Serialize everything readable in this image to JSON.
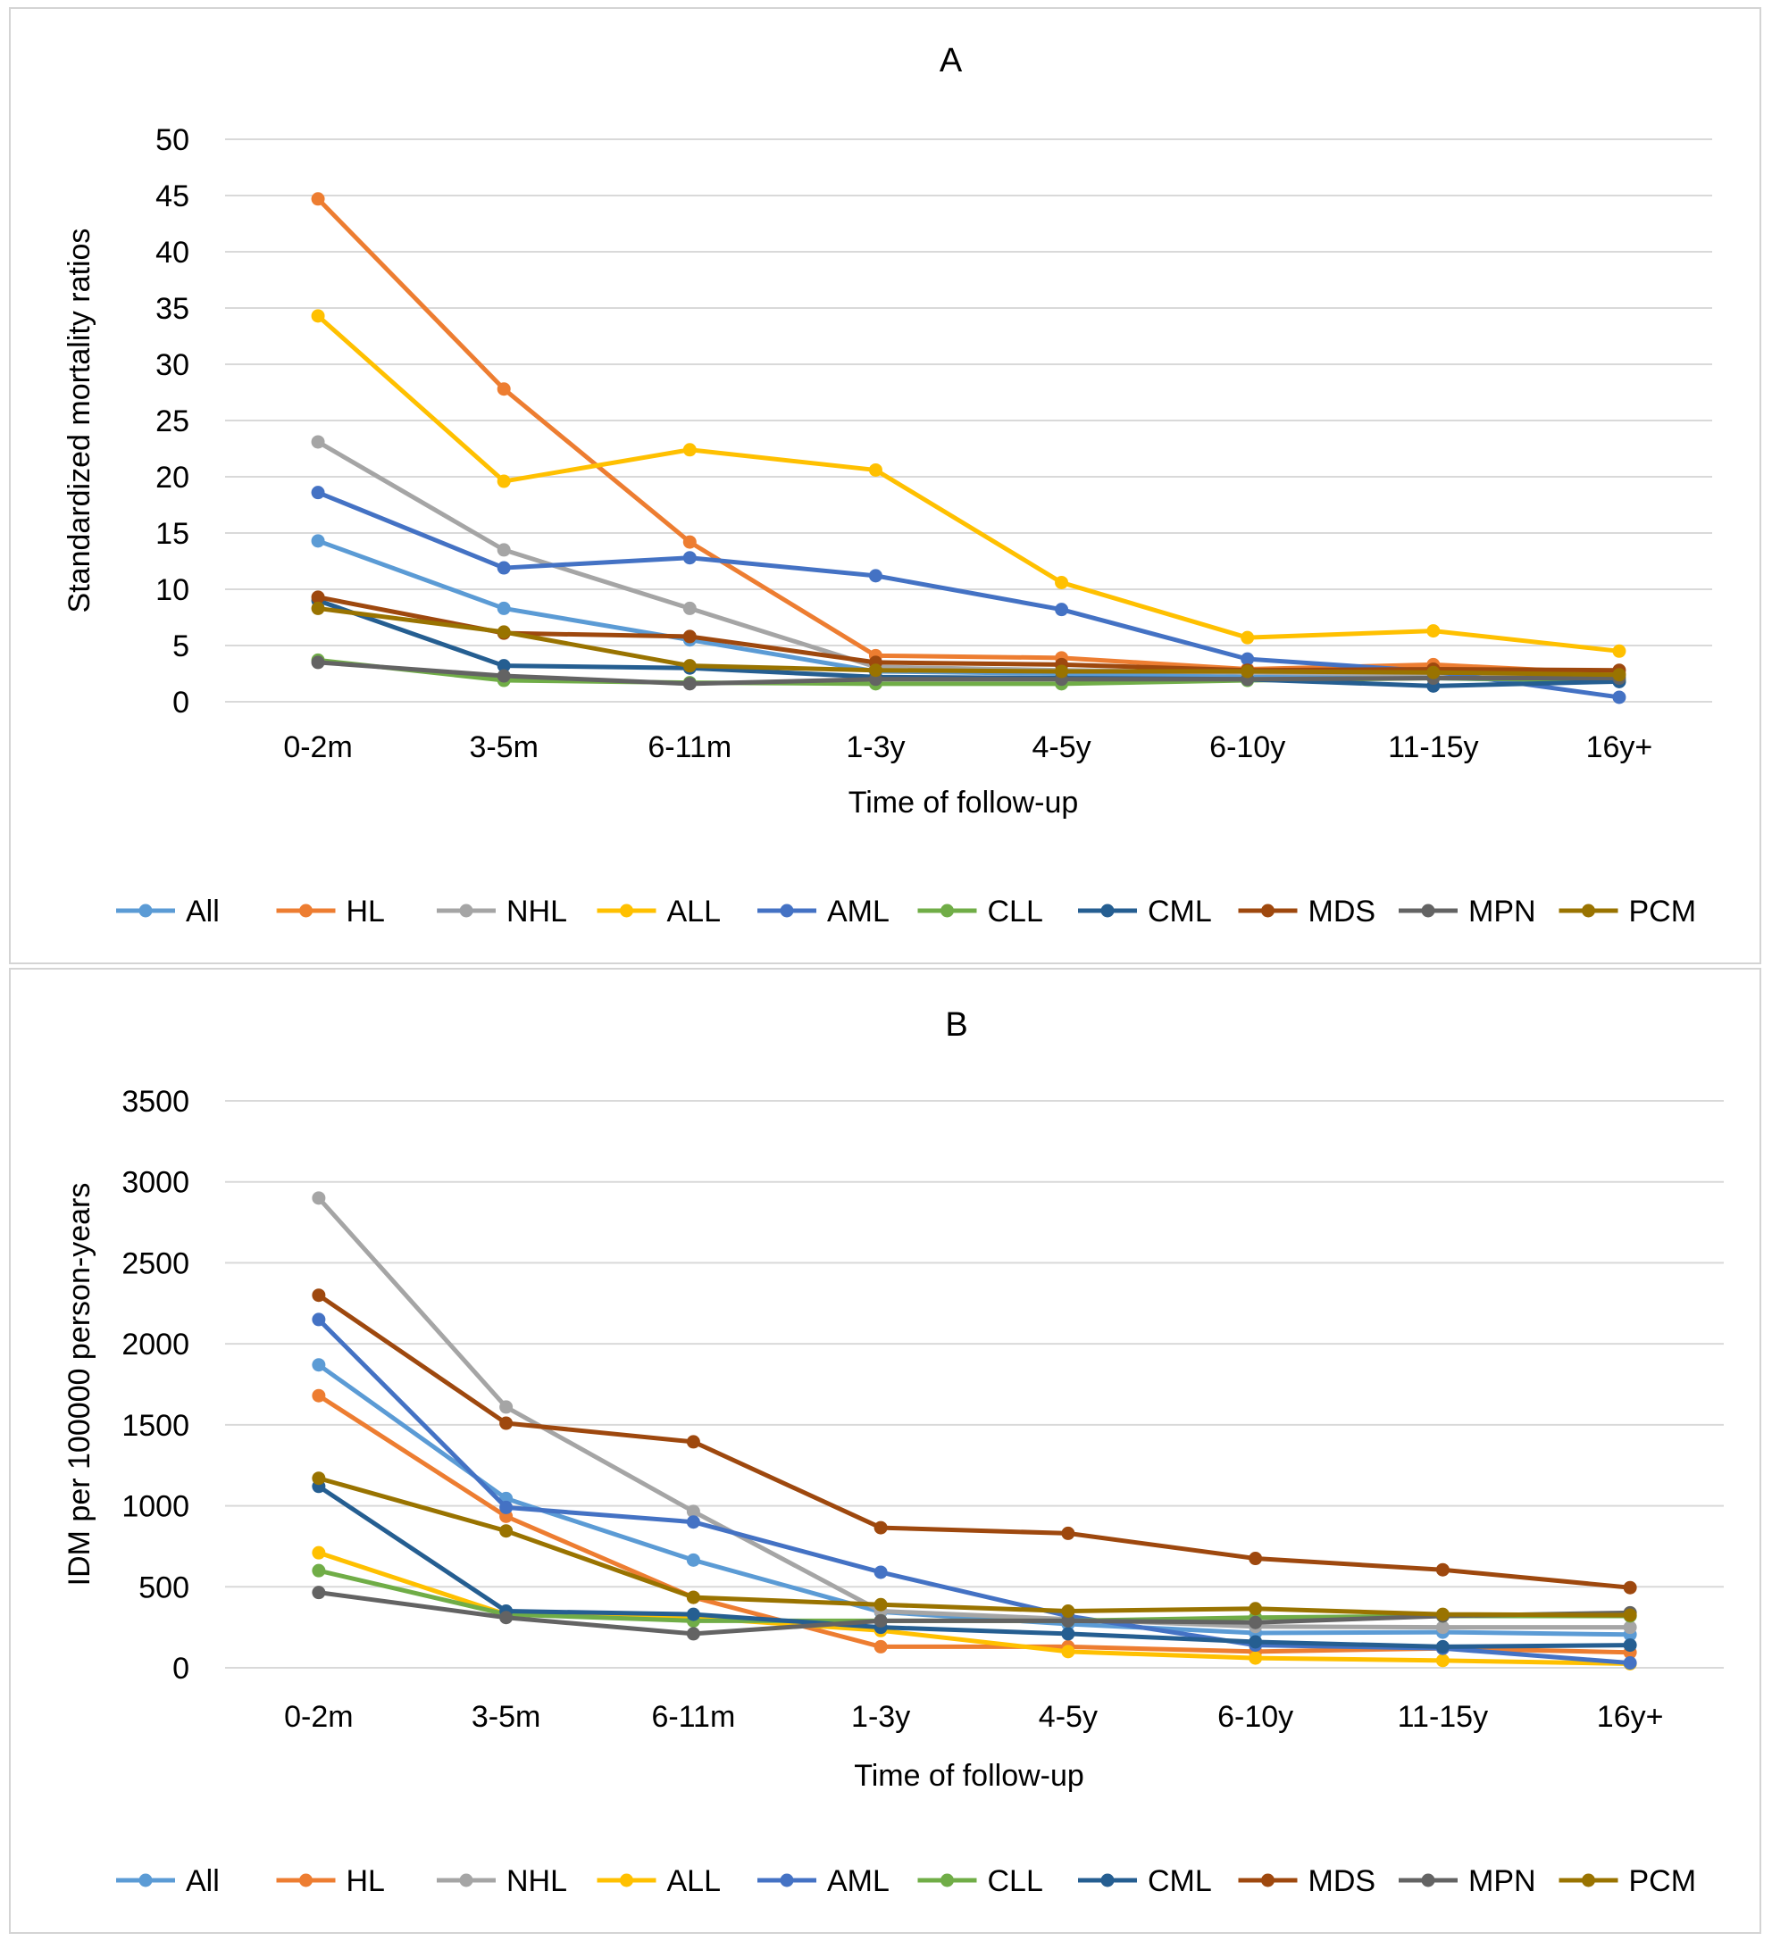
{
  "chart_data": [
    {
      "type": "line",
      "title": "A",
      "xlabel": "Time of follow-up",
      "ylabel": "Standardized mortality ratios",
      "ylim": [
        0,
        50
      ],
      "yticks": [
        0,
        5,
        10,
        15,
        20,
        25,
        30,
        35,
        40,
        45,
        50
      ],
      "grid": true,
      "legend_position": "bottom",
      "categories": [
        "0-2m",
        "3-5m",
        "6-11m",
        "1-3y",
        "4-5y",
        "6-10y",
        "11-15y",
        "16y+"
      ],
      "series": [
        {
          "name": "All",
          "color": "#5B9BD5",
          "values": [
            14.3,
            8.3,
            5.5,
            2.7,
            2.5,
            2.2,
            2.1,
            1.8
          ]
        },
        {
          "name": "HL",
          "color": "#ED7D31",
          "values": [
            44.7,
            27.8,
            14.2,
            4.1,
            3.9,
            2.9,
            3.3,
            2.5
          ]
        },
        {
          "name": "NHL",
          "color": "#A5A5A5",
          "values": [
            23.1,
            13.5,
            8.3,
            3.1,
            2.8,
            2.6,
            2.4,
            2.3
          ]
        },
        {
          "name": "ALL",
          "color": "#FFC000",
          "values": [
            34.3,
            19.6,
            22.4,
            20.6,
            10.6,
            5.7,
            6.3,
            4.5
          ]
        },
        {
          "name": "AML",
          "color": "#4472C4",
          "values": [
            18.6,
            11.9,
            12.8,
            11.2,
            8.2,
            3.8,
            2.7,
            0.4
          ]
        },
        {
          "name": "CLL",
          "color": "#70AD47",
          "values": [
            3.7,
            1.9,
            1.7,
            1.6,
            1.6,
            1.9,
            2.1,
            1.9
          ]
        },
        {
          "name": "CML",
          "color": "#255E91",
          "values": [
            9.0,
            3.2,
            3.0,
            2.2,
            2.1,
            2.0,
            1.4,
            1.8
          ]
        },
        {
          "name": "MDS",
          "color": "#9E480E",
          "values": [
            9.3,
            6.1,
            5.8,
            3.5,
            3.3,
            2.8,
            2.9,
            2.8
          ]
        },
        {
          "name": "MPN",
          "color": "#636363",
          "values": [
            3.5,
            2.3,
            1.6,
            2.0,
            2.0,
            2.0,
            2.1,
            2.1
          ]
        },
        {
          "name": "PCM",
          "color": "#997300",
          "values": [
            8.3,
            6.2,
            3.2,
            2.8,
            2.7,
            2.7,
            2.6,
            2.4
          ]
        }
      ]
    },
    {
      "type": "line",
      "title": "B",
      "xlabel": "Time of follow-up",
      "ylabel": "IDM per 100000 person-years",
      "ylim": [
        0,
        3500
      ],
      "yticks": [
        0,
        500,
        1000,
        1500,
        2000,
        2500,
        3000,
        3500
      ],
      "grid": true,
      "legend_position": "bottom",
      "categories": [
        "0-2m",
        "3-5m",
        "6-11m",
        "1-3y",
        "4-5y",
        "6-10y",
        "11-15y",
        "16y+"
      ],
      "series": [
        {
          "name": "All",
          "color": "#5B9BD5",
          "values": [
            1870,
            1045,
            665,
            345,
            270,
            215,
            220,
            205
          ]
        },
        {
          "name": "HL",
          "color": "#ED7D31",
          "values": [
            1680,
            935,
            435,
            130,
            130,
            100,
            120,
            95
          ]
        },
        {
          "name": "NHL",
          "color": "#A5A5A5",
          "values": [
            2900,
            1610,
            965,
            350,
            300,
            255,
            250,
            250
          ]
        },
        {
          "name": "ALL",
          "color": "#FFC000",
          "values": [
            710,
            330,
            310,
            230,
            100,
            60,
            45,
            25
          ]
        },
        {
          "name": "AML",
          "color": "#4472C4",
          "values": [
            2150,
            990,
            900,
            590,
            320,
            140,
            120,
            30
          ]
        },
        {
          "name": "CLL",
          "color": "#70AD47",
          "values": [
            600,
            330,
            290,
            290,
            290,
            310,
            320,
            320
          ]
        },
        {
          "name": "CML",
          "color": "#255E91",
          "values": [
            1120,
            350,
            330,
            250,
            210,
            160,
            130,
            140
          ]
        },
        {
          "name": "MDS",
          "color": "#9E480E",
          "values": [
            2300,
            1510,
            1395,
            865,
            830,
            675,
            605,
            495
          ]
        },
        {
          "name": "MPN",
          "color": "#636363",
          "values": [
            465,
            310,
            210,
            290,
            290,
            280,
            320,
            340
          ]
        },
        {
          "name": "PCM",
          "color": "#997300",
          "values": [
            1170,
            845,
            435,
            390,
            350,
            365,
            330,
            325
          ]
        }
      ]
    }
  ]
}
